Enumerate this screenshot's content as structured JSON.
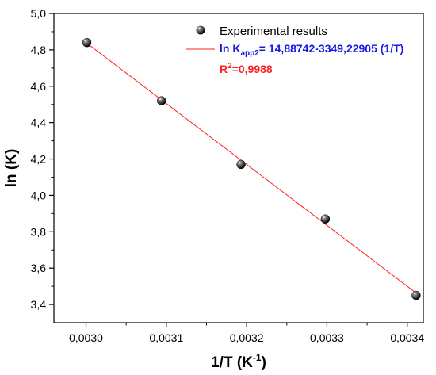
{
  "chart_data": {
    "type": "scatter",
    "xlabel_main": "1/T (K",
    "xlabel_sup": "-1",
    "xlabel_end": ")",
    "ylabel": "ln (K)",
    "xlim": [
      0.00296,
      0.00342
    ],
    "ylim": [
      3.3,
      5.0
    ],
    "x_ticks": [
      0.003,
      0.0031,
      0.0032,
      0.0033,
      0.0034
    ],
    "x_tick_labels": [
      "0,0030",
      "0,0031",
      "0,0032",
      "0,0033",
      "0,0034"
    ],
    "y_ticks": [
      3.4,
      3.6,
      3.8,
      4.0,
      4.2,
      4.4,
      4.6,
      4.8,
      5.0
    ],
    "y_tick_labels": [
      "3,4",
      "3,6",
      "3,8",
      "4,0",
      "4,2",
      "4,4",
      "4,6",
      "4,8",
      "5,0"
    ],
    "grid": false,
    "legend_placement": "top-right",
    "series": [
      {
        "name": "Experimental results",
        "marker_color": "#111111",
        "x": [
          0.003001,
          0.003094,
          0.003193,
          0.003298,
          0.003411
        ],
        "y": [
          4.84,
          4.52,
          4.17,
          3.87,
          3.45
        ]
      }
    ],
    "fit": {
      "slope": -3349.22905,
      "intercept": 14.88742,
      "x_range": [
        0.003001,
        0.003411
      ],
      "color": "#ff2020",
      "equation_prefix": "ln K",
      "equation_sub": "app2",
      "equation_rest": "= 14,88742-3349,22905 (1/T)",
      "equation_color": "#1a1ae6",
      "r2_prefix": "R",
      "r2_sup": "2",
      "r2_rest": "=0,9988",
      "r2_color": "#ff2020"
    }
  }
}
